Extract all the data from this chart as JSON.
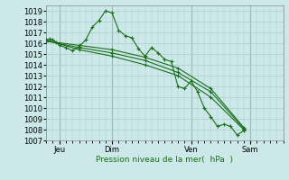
{
  "bg_color": "#cce8e8",
  "grid_color": "#aacccc",
  "line_color": "#1a6e1a",
  "xlabel": "Pression niveau de la mer(  hPa  )",
  "ylim": [
    1007,
    1019.5
  ],
  "yticks": [
    1007,
    1008,
    1009,
    1010,
    1011,
    1012,
    1013,
    1014,
    1015,
    1016,
    1017,
    1018,
    1019
  ],
  "xlim": [
    0,
    36
  ],
  "day_positions": [
    2,
    10,
    22,
    31
  ],
  "day_labels": [
    "Jeu",
    "Dim",
    "Ven",
    "Sam"
  ],
  "day_vlines": [
    2,
    10,
    22,
    31
  ],
  "series1_x": [
    0,
    0.5,
    1,
    1.5,
    2,
    3,
    4,
    5,
    6,
    7,
    8,
    9,
    10,
    11,
    12,
    13,
    14,
    15,
    16,
    17,
    18,
    19,
    20,
    21,
    22,
    23,
    24,
    25,
    26,
    27,
    28,
    29,
    30
  ],
  "series1_y": [
    1016.3,
    1016.4,
    1016.3,
    1016.1,
    1015.8,
    1015.6,
    1015.3,
    1015.7,
    1016.3,
    1017.5,
    1018.1,
    1019.0,
    1018.8,
    1017.2,
    1016.7,
    1016.5,
    1015.5,
    1014.8,
    1015.6,
    1015.1,
    1014.5,
    1014.3,
    1012.0,
    1011.8,
    1012.5,
    1011.5,
    1010.0,
    1009.2,
    1008.3,
    1008.5,
    1008.3,
    1007.5,
    1007.9
  ],
  "series2_x": [
    0,
    5,
    10,
    15,
    20,
    25,
    30
  ],
  "series2_y": [
    1016.3,
    1015.4,
    1014.8,
    1014.0,
    1013.0,
    1011.0,
    1008.0
  ],
  "series3_x": [
    0,
    5,
    10,
    15,
    20,
    25,
    30
  ],
  "series3_y": [
    1016.2,
    1015.6,
    1015.1,
    1014.4,
    1013.3,
    1011.5,
    1008.1
  ],
  "series4_x": [
    0,
    5,
    10,
    15,
    20,
    25,
    30
  ],
  "series4_y": [
    1016.2,
    1015.8,
    1015.4,
    1014.7,
    1013.7,
    1011.8,
    1008.2
  ]
}
